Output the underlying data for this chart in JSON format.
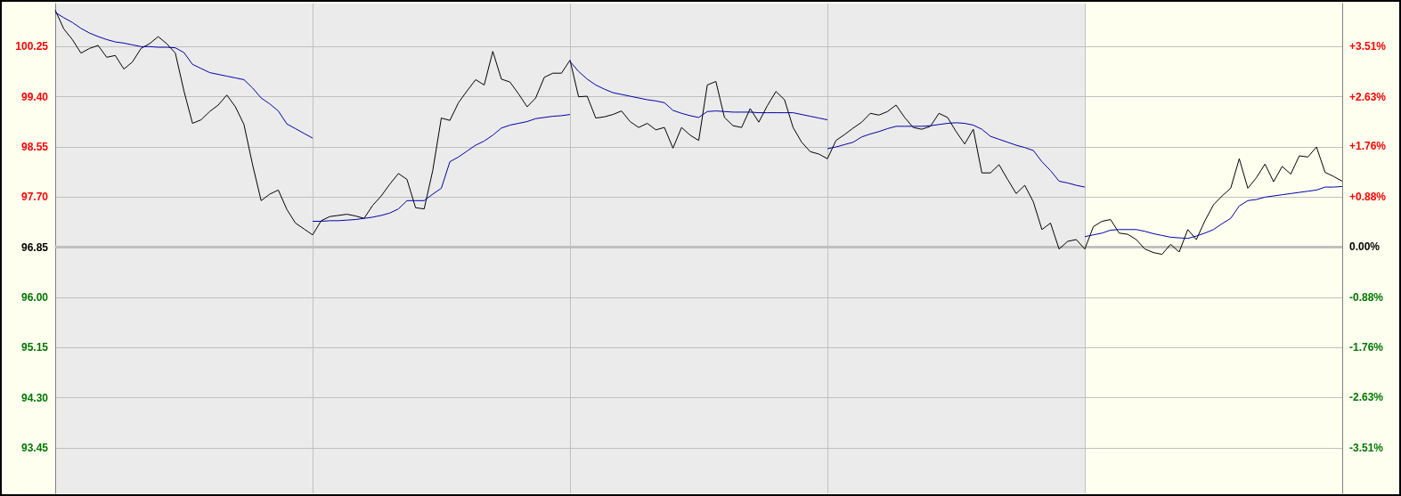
{
  "chart_data": {
    "type": "line",
    "marker": "none",
    "line_style": "solid",
    "grid": true,
    "tick_labels": "y",
    "categories": [
      null,
      null,
      null,
      null,
      null,
      null,
      null,
      null,
      null,
      null,
      null,
      null,
      null,
      null,
      null,
      null,
      null,
      null,
      null,
      null,
      null,
      null,
      null,
      null,
      null,
      null,
      null,
      null,
      null,
      null,
      null,
      null,
      null,
      null,
      null,
      null,
      null,
      null,
      null,
      null,
      null,
      null,
      null,
      null,
      null,
      null,
      null,
      null,
      null,
      null,
      null,
      null,
      null,
      null,
      null,
      null,
      null,
      null,
      null,
      null,
      null,
      null,
      null,
      null,
      null,
      null,
      null,
      null,
      null,
      null,
      null,
      null,
      null,
      null,
      null,
      null,
      null,
      null,
      null,
      null,
      null,
      null,
      null,
      null,
      null,
      null,
      null,
      null,
      null,
      null,
      null,
      null,
      null,
      null,
      null,
      null,
      null,
      null,
      null,
      null,
      null,
      null,
      null,
      null,
      null,
      null,
      null,
      null,
      null,
      null,
      null,
      null,
      null,
      null,
      null,
      null,
      null,
      null,
      null,
      null,
      null,
      null,
      null,
      null,
      null,
      null,
      null,
      null,
      null,
      null,
      null,
      null,
      null,
      null,
      null,
      null,
      null,
      null,
      null,
      null,
      null,
      null,
      null,
      null,
      null,
      null,
      null,
      null,
      null,
      null,
      null
    ],
    "ylim": [
      92.68,
      100.98
    ],
    "yticks": [
      93.45,
      {
        "value": 94.3,
        "label": "94.30"
      },
      95.15,
      {
        "value": 96.0,
        "label": "96.00"
      },
      96.85,
      {
        "value": 97.7,
        "label": "97.70"
      },
      98.55,
      {
        "value": 99.4,
        "label": "99.40"
      },
      100.25
    ],
    "y2lim": [
      -4.31,
      4.26
    ],
    "y2ticks": [
      {
        "value": -3.51,
        "label": "-3.51%"
      },
      {
        "value": -2.63,
        "label": "-2.63%"
      },
      {
        "value": -1.76,
        "label": "-1.76%"
      },
      {
        "value": -0.88,
        "label": "-0.88%"
      },
      {
        "value": 0,
        "label": "0.00%"
      },
      {
        "value": 0.88,
        "label": "+0.88%"
      },
      {
        "value": 1.76,
        "label": "+1.76%"
      },
      {
        "value": 2.63,
        "label": "+2.63%"
      },
      {
        "value": 3.51,
        "label": "+3.51%"
      }
    ],
    "ref_lines": [
      {
        "axis": "y",
        "value": 96.85,
        "color": "#c0c0c0"
      }
    ],
    "series": [
      {
        "color": "#000000",
        "values": [
          100.87,
          100.55,
          100.37,
          100.14,
          100.22,
          100.27,
          100.07,
          100.1,
          99.87,
          99.99,
          100.22,
          100.3,
          100.42,
          100.3,
          100.14,
          99.5,
          98.95,
          99.01,
          99.15,
          99.26,
          99.43,
          99.23,
          98.93,
          98.25,
          97.64,
          97.75,
          97.82,
          97.49,
          97.26,
          97.16,
          97.06,
          97.3,
          97.37,
          97.39,
          97.41,
          97.38,
          97.34,
          97.56,
          97.72,
          97.92,
          98.1,
          98.0,
          97.52,
          97.5,
          98.15,
          99.04,
          99.0,
          99.3,
          99.5,
          99.69,
          99.6,
          100.17,
          99.7,
          99.65,
          99.45,
          99.23,
          99.38,
          99.73,
          99.8,
          99.8,
          100.02,
          99.4,
          99.41,
          99.04,
          99.06,
          99.1,
          99.16,
          98.98,
          98.88,
          98.95,
          98.84,
          98.88,
          98.53,
          98.88,
          98.75,
          98.66,
          99.6,
          99.66,
          99.05,
          98.91,
          98.88,
          99.2,
          98.97,
          99.25,
          99.49,
          99.35,
          98.88,
          98.63,
          98.47,
          98.43,
          98.35,
          98.66,
          98.76,
          98.87,
          98.97,
          99.12,
          99.09,
          99.15,
          99.26,
          99.05,
          98.88,
          98.85,
          98.9,
          99.12,
          99.05,
          98.81,
          98.6,
          98.85,
          98.11,
          98.11,
          98.25,
          98.0,
          97.76,
          97.9,
          97.62,
          97.15,
          97.26,
          96.82,
          96.95,
          96.98,
          96.82,
          97.2,
          97.29,
          97.32,
          97.09,
          97.07,
          96.98,
          96.82,
          96.76,
          96.73,
          96.9,
          96.77,
          97.15,
          96.98,
          97.3,
          97.57,
          97.72,
          97.85,
          98.35,
          97.85,
          98.03,
          98.26,
          97.96,
          98.22,
          98.09,
          98.4,
          98.38,
          98.55,
          98.12,
          98.05,
          97.97
        ]
      },
      {
        "color": "#0000aa",
        "values": [
          100.83,
          100.74,
          100.66,
          100.56,
          100.48,
          100.42,
          100.37,
          100.33,
          100.31,
          100.28,
          100.25,
          100.25,
          100.24,
          100.24,
          100.23,
          100.15,
          99.95,
          99.88,
          99.81,
          99.78,
          99.75,
          99.72,
          99.69,
          99.55,
          99.38,
          99.28,
          99.16,
          98.94,
          98.86,
          98.78,
          98.7,
          null,
          null,
          null,
          null,
          null,
          null,
          null,
          null,
          null,
          null,
          null,
          null,
          null,
          null,
          null,
          null,
          null,
          null,
          null,
          null,
          null,
          null,
          null,
          null,
          null,
          null,
          null,
          null,
          null,
          null,
          null,
          null,
          null,
          null,
          null,
          null,
          null,
          null,
          null,
          null,
          null,
          null,
          null,
          null,
          null,
          null,
          null,
          null,
          null,
          null,
          null,
          null,
          null,
          null,
          null,
          null,
          null,
          null,
          null,
          null,
          null,
          null,
          null,
          null,
          null,
          null,
          null,
          null,
          null,
          null,
          null,
          null,
          null,
          null,
          null,
          null,
          null,
          null,
          null,
          null,
          null,
          null,
          null,
          null,
          null,
          null,
          null,
          null,
          null,
          null,
          null,
          null,
          null,
          null,
          null,
          null,
          null,
          null,
          null,
          null,
          null,
          null,
          null,
          null,
          null,
          null,
          null,
          null,
          null,
          null,
          null,
          null,
          null,
          null,
          null,
          null,
          null,
          null,
          null,
          null
        ]
      },
      {
        "color": "#0000aa",
        "values": [
          null,
          null,
          null,
          null,
          null,
          null,
          null,
          null,
          null,
          null,
          null,
          null,
          null,
          null,
          null,
          null,
          null,
          null,
          null,
          null,
          null,
          null,
          null,
          null,
          null,
          null,
          null,
          null,
          null,
          null,
          97.29,
          97.29,
          97.3,
          97.3,
          97.31,
          97.32,
          97.34,
          97.36,
          97.39,
          97.43,
          97.5,
          97.64,
          97.64,
          97.64,
          97.75,
          97.85,
          98.3,
          98.38,
          98.48,
          98.58,
          98.65,
          98.75,
          98.87,
          98.92,
          98.95,
          98.98,
          99.03,
          99.05,
          99.07,
          99.08,
          99.1,
          null,
          null,
          null,
          null,
          null,
          null,
          null,
          null,
          null,
          null,
          null,
          null,
          null,
          null,
          null,
          null,
          null,
          null,
          null,
          null,
          null,
          null,
          null,
          null,
          null,
          null,
          null,
          null,
          null,
          null,
          null,
          null,
          null,
          null,
          null,
          null,
          null,
          null,
          null,
          null,
          null,
          null,
          null,
          null,
          null,
          null,
          null,
          null,
          null,
          null,
          null,
          null,
          null,
          null,
          null,
          null,
          null,
          null,
          null,
          null,
          null,
          null,
          null,
          null,
          null,
          null,
          null,
          null,
          null,
          null,
          null,
          null,
          null,
          null,
          null,
          null,
          null,
          null,
          null,
          null,
          null,
          null,
          null,
          null,
          null,
          null,
          null,
          null,
          null,
          null
        ]
      },
      {
        "color": "#0000aa",
        "values": [
          null,
          null,
          null,
          null,
          null,
          null,
          null,
          null,
          null,
          null,
          null,
          null,
          null,
          null,
          null,
          null,
          null,
          null,
          null,
          null,
          null,
          null,
          null,
          null,
          null,
          null,
          null,
          null,
          null,
          null,
          null,
          null,
          null,
          null,
          null,
          null,
          null,
          null,
          null,
          null,
          null,
          null,
          null,
          null,
          null,
          null,
          null,
          null,
          null,
          null,
          null,
          null,
          null,
          null,
          null,
          null,
          null,
          null,
          null,
          null,
          100.0,
          99.83,
          99.7,
          99.6,
          99.53,
          99.47,
          99.44,
          99.41,
          99.38,
          99.35,
          99.33,
          99.3,
          99.17,
          99.12,
          99.08,
          99.05,
          99.15,
          99.16,
          99.15,
          99.14,
          99.14,
          99.14,
          99.13,
          99.13,
          99.13,
          99.13,
          99.13,
          99.1,
          99.07,
          99.04,
          99.01,
          null,
          null,
          null,
          null,
          null,
          null,
          null,
          null,
          null,
          null,
          null,
          null,
          null,
          null,
          null,
          null,
          null,
          null,
          null,
          null,
          null,
          null,
          null,
          null,
          null,
          null,
          null,
          null,
          null,
          null,
          null,
          null,
          null,
          null,
          null,
          null,
          null,
          null,
          null,
          null,
          null,
          null,
          null,
          null,
          null,
          null,
          null,
          null,
          null,
          null,
          null,
          null,
          null,
          null,
          null,
          null,
          null,
          null,
          null,
          null
        ]
      },
      {
        "color": "#0000aa",
        "values": [
          null,
          null,
          null,
          null,
          null,
          null,
          null,
          null,
          null,
          null,
          null,
          null,
          null,
          null,
          null,
          null,
          null,
          null,
          null,
          null,
          null,
          null,
          null,
          null,
          null,
          null,
          null,
          null,
          null,
          null,
          null,
          null,
          null,
          null,
          null,
          null,
          null,
          null,
          null,
          null,
          null,
          null,
          null,
          null,
          null,
          null,
          null,
          null,
          null,
          null,
          null,
          null,
          null,
          null,
          null,
          null,
          null,
          null,
          null,
          null,
          null,
          null,
          null,
          null,
          null,
          null,
          null,
          null,
          null,
          null,
          null,
          null,
          null,
          null,
          null,
          null,
          null,
          null,
          null,
          null,
          null,
          null,
          null,
          null,
          null,
          null,
          null,
          null,
          null,
          null,
          98.52,
          98.55,
          98.59,
          98.63,
          98.72,
          98.77,
          98.81,
          98.86,
          98.9,
          98.9,
          98.9,
          98.9,
          98.91,
          98.93,
          98.95,
          98.96,
          98.95,
          98.92,
          98.85,
          98.73,
          98.68,
          98.63,
          98.58,
          98.54,
          98.49,
          98.3,
          98.15,
          97.97,
          97.94,
          97.9,
          97.87,
          null,
          null,
          null,
          null,
          null,
          null,
          null,
          null,
          null,
          null,
          null,
          null,
          null,
          null,
          null,
          null,
          null,
          null,
          null,
          null,
          null,
          null,
          null,
          null,
          null,
          null,
          null,
          null,
          null,
          null
        ]
      },
      {
        "color": "#0000aa",
        "values": [
          null,
          null,
          null,
          null,
          null,
          null,
          null,
          null,
          null,
          null,
          null,
          null,
          null,
          null,
          null,
          null,
          null,
          null,
          null,
          null,
          null,
          null,
          null,
          null,
          null,
          null,
          null,
          null,
          null,
          null,
          null,
          null,
          null,
          null,
          null,
          null,
          null,
          null,
          null,
          null,
          null,
          null,
          null,
          null,
          null,
          null,
          null,
          null,
          null,
          null,
          null,
          null,
          null,
          null,
          null,
          null,
          null,
          null,
          null,
          null,
          null,
          null,
          null,
          null,
          null,
          null,
          null,
          null,
          null,
          null,
          null,
          null,
          null,
          null,
          null,
          null,
          null,
          null,
          null,
          null,
          null,
          null,
          null,
          null,
          null,
          null,
          null,
          null,
          null,
          null,
          null,
          null,
          null,
          null,
          null,
          null,
          null,
          null,
          null,
          null,
          null,
          null,
          null,
          null,
          null,
          null,
          null,
          null,
          null,
          null,
          null,
          null,
          null,
          null,
          null,
          null,
          null,
          null,
          null,
          null,
          97.03,
          97.06,
          97.09,
          97.14,
          97.15,
          97.15,
          97.15,
          97.12,
          97.08,
          97.05,
          97.02,
          97.01,
          97.0,
          97.04,
          97.09,
          97.15,
          97.25,
          97.34,
          97.55,
          97.64,
          97.66,
          97.7,
          97.72,
          97.74,
          97.76,
          97.78,
          97.8,
          97.82,
          97.87,
          97.87,
          97.88
        ]
      }
    ]
  }
}
